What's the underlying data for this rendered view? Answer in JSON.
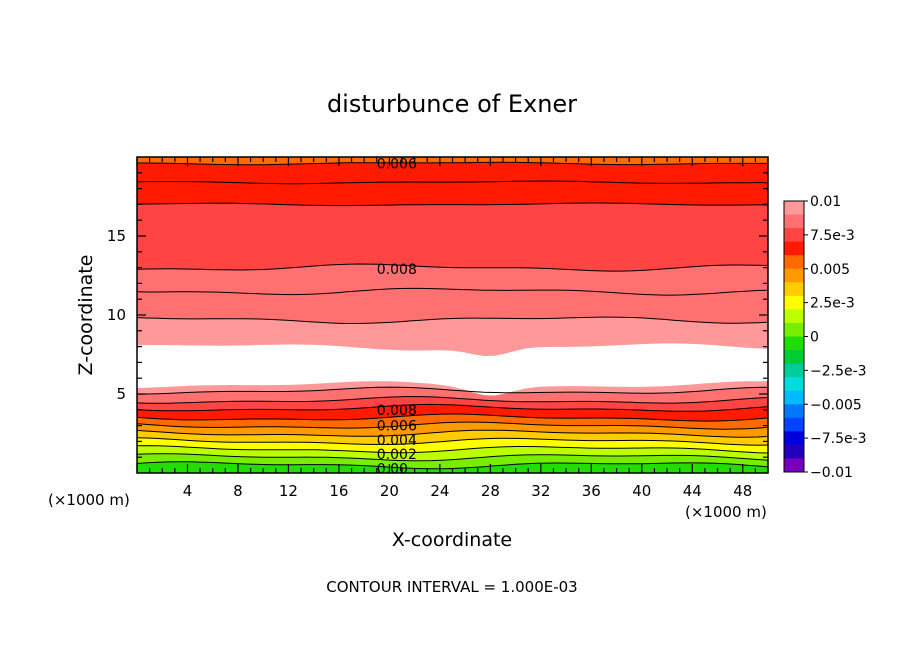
{
  "chart_data": {
    "type": "heatmap",
    "subtype": "filled-contour",
    "title": "disturbunce of Exner",
    "xlabel": "X-coordinate",
    "ylabel": "Z-coordinate",
    "x_units": "(×1000 m)",
    "x_units_right": "(×1000 m)",
    "xlim": [
      0,
      50
    ],
    "ylim": [
      0,
      20
    ],
    "x_ticks": [
      "4",
      "8",
      "12",
      "16",
      "20",
      "24",
      "28",
      "32",
      "36",
      "40",
      "44",
      "48"
    ],
    "y_ticks": [
      "5",
      "10",
      "15"
    ],
    "footer": "CONTOUR INTERVAL = 1.000E-03",
    "colorbar": {
      "range": [
        -0.01,
        0.01
      ],
      "labels": [
        "0.01",
        "7.5e-3",
        "0.005",
        "2.5e-3",
        "0",
        "-2.5e-3",
        "-0.005",
        "-7.5e-3",
        "-0.01"
      ],
      "colors": [
        "#ff9999",
        "#ff7070",
        "#ff4444",
        "#ff1a00",
        "#ff6a00",
        "#ff9900",
        "#ffcc00",
        "#ffff00",
        "#bbff00",
        "#77ee00",
        "#22dd00",
        "#00cc33",
        "#00cc99",
        "#00dddd",
        "#00bbff",
        "#0077ff",
        "#0044ff",
        "#0000dd",
        "#2200bb",
        "#7700bb"
      ]
    },
    "contour_labels": [
      {
        "text": "0.006",
        "x": 19,
        "z": 19.6
      },
      {
        "text": "0.008",
        "x": 19,
        "z": 12.9
      },
      {
        "text": "0.008",
        "x": 19,
        "z": 4.0
      },
      {
        "text": "0.006",
        "x": 19,
        "z": 3.0
      },
      {
        "text": "0.004",
        "x": 19,
        "z": 2.1
      },
      {
        "text": "0.002",
        "x": 19,
        "z": 1.2
      },
      {
        "text": "0.00",
        "x": 19,
        "z": 0.3
      }
    ],
    "bands": [
      {
        "z0": 0.0,
        "z1": 0.5,
        "value": -0.0005
      },
      {
        "z0": 0.5,
        "z1": 1.0,
        "value": 0.0005
      },
      {
        "z0": 1.0,
        "z1": 1.5,
        "value": 0.0015
      },
      {
        "z0": 1.5,
        "z1": 2.0,
        "value": 0.0025
      },
      {
        "z0": 2.0,
        "z1": 2.5,
        "value": 0.0035
      },
      {
        "z0": 2.5,
        "z1": 3.0,
        "value": 0.0045
      },
      {
        "z0": 3.0,
        "z1": 3.5,
        "value": 0.0055
      },
      {
        "z0": 3.5,
        "z1": 4.1,
        "value": 0.0065
      },
      {
        "z0": 4.1,
        "z1": 4.6,
        "value": 0.0075
      },
      {
        "z0": 4.6,
        "z1": 5.2,
        "value": 0.0085
      },
      {
        "z0": 5.2,
        "z1": 5.6,
        "value": 0.0095
      },
      {
        "z0": 5.6,
        "z1": 8.0,
        "value": null
      },
      {
        "z0": 8.0,
        "z1": 9.7,
        "value": 0.0095
      },
      {
        "z0": 9.7,
        "z1": 11.5,
        "value": 0.0088
      },
      {
        "z0": 11.5,
        "z1": 13.0,
        "value": 0.0082
      },
      {
        "z0": 13.0,
        "z1": 17.0,
        "value": 0.0075
      },
      {
        "z0": 17.0,
        "z1": 18.4,
        "value": 0.0068
      },
      {
        "z0": 18.4,
        "z1": 19.6,
        "value": 0.0062
      },
      {
        "z0": 19.6,
        "z1": 20.0,
        "value": 0.0058
      }
    ]
  }
}
